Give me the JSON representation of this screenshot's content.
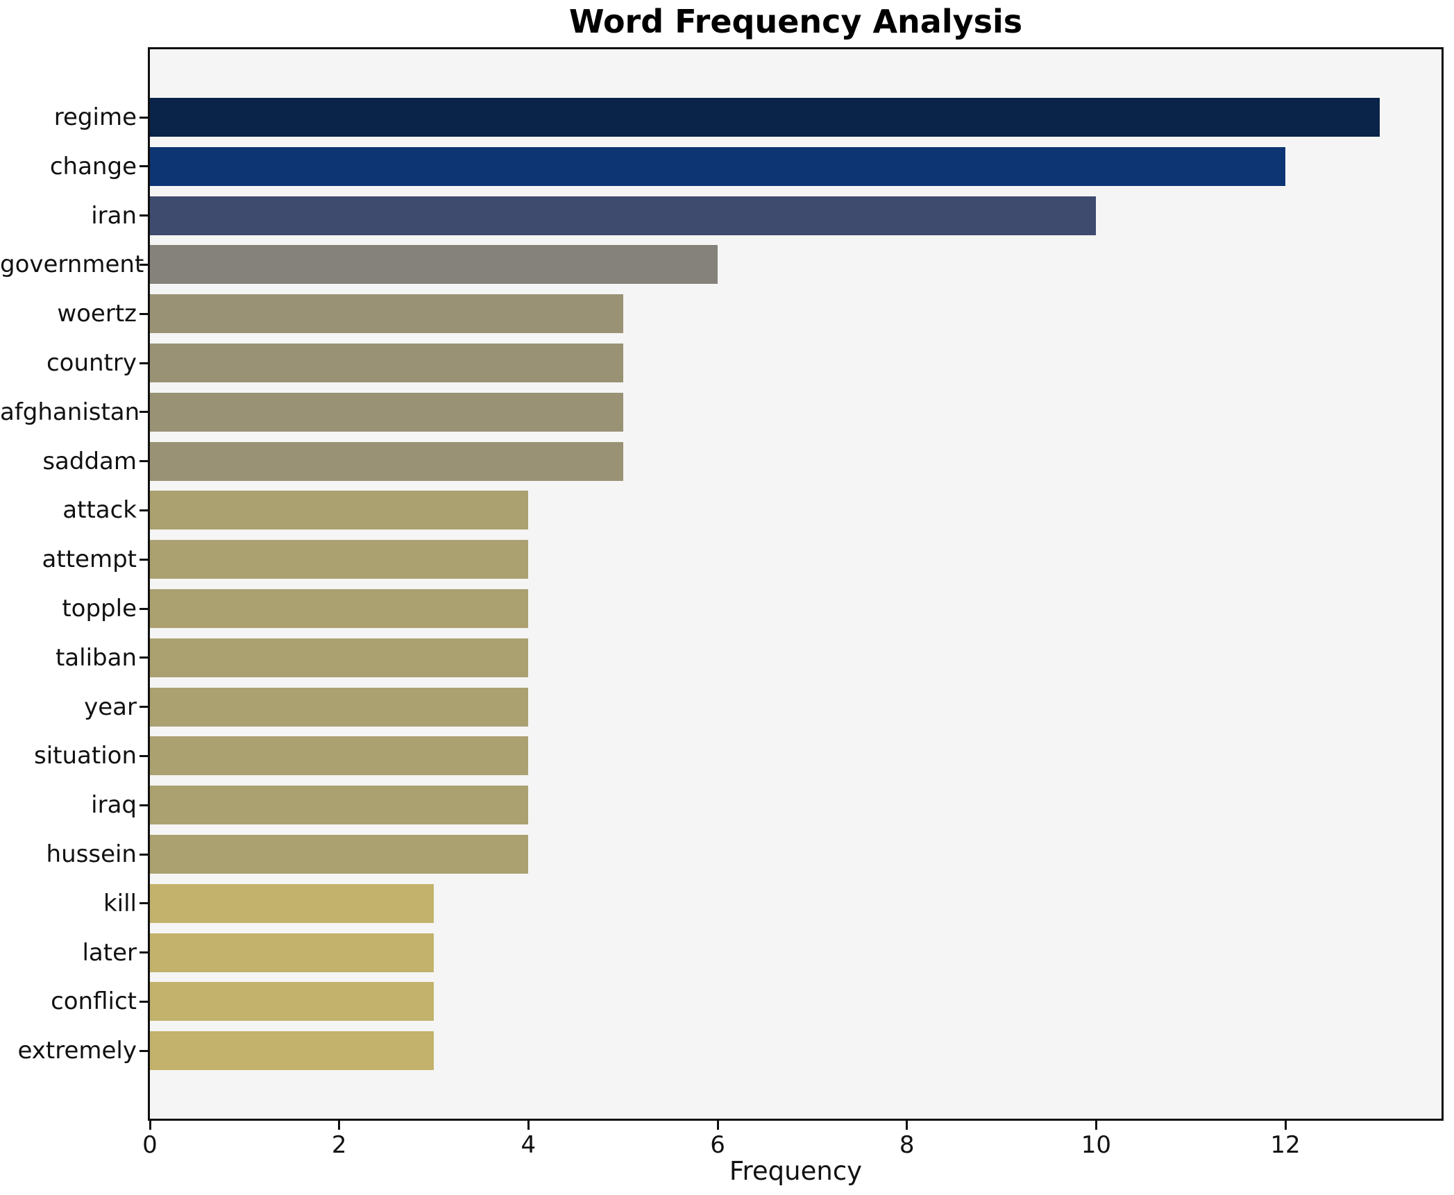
{
  "figure": {
    "title": "Word Frequency Analysis",
    "xlabel": "Frequency"
  },
  "chart_data": {
    "type": "bar",
    "orientation": "horizontal",
    "title": "Word Frequency Analysis",
    "xlabel": "Frequency",
    "ylabel": "",
    "categories": [
      "regime",
      "change",
      "iran",
      "government",
      "woertz",
      "country",
      "afghanistan",
      "saddam",
      "attack",
      "attempt",
      "topple",
      "taliban",
      "year",
      "situation",
      "iraq",
      "hussein",
      "kill",
      "later",
      "conflict",
      "extremely"
    ],
    "values": [
      13,
      12,
      10,
      6,
      5,
      5,
      5,
      5,
      4,
      4,
      4,
      4,
      4,
      4,
      4,
      4,
      3,
      3,
      3,
      3
    ],
    "bar_colors": [
      "#0a2349",
      "#0d3574",
      "#3e4a6e",
      "#84827a",
      "#999274",
      "#999274",
      "#999274",
      "#999274",
      "#aba170",
      "#aba170",
      "#aba170",
      "#aba170",
      "#aba170",
      "#aba170",
      "#aba170",
      "#aba170",
      "#c2b26b",
      "#c2b26b",
      "#c2b26b",
      "#c2b26b"
    ],
    "x_ticks": [
      0,
      2,
      4,
      6,
      8,
      10,
      12
    ],
    "xlim": [
      0,
      13.65
    ],
    "grid": false,
    "legend": null,
    "plot_bg_color": "#f5f5f5",
    "figure_bg_color": "#ffffff",
    "spine_color": "#0f0f0f",
    "text_color": "#111111"
  }
}
